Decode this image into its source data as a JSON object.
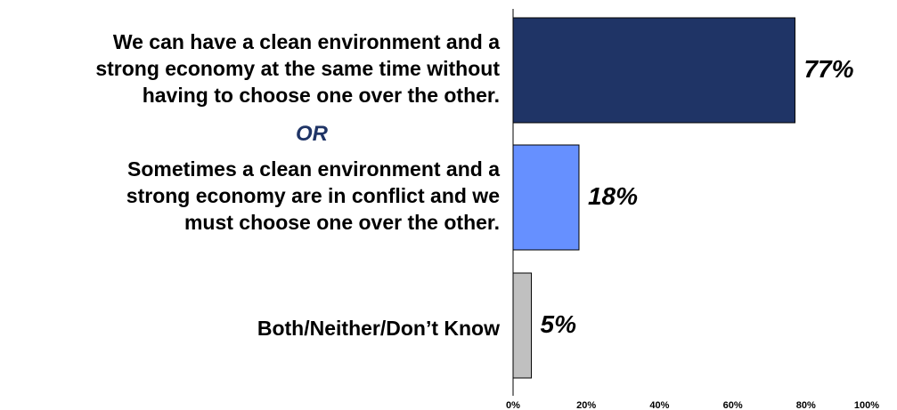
{
  "chart_data": {
    "type": "bar",
    "orientation": "horizontal",
    "categories": [
      "We can have a clean environment and a\nstrong economy at the same time without\nhaving to choose one over the other.",
      "Sometimes a clean environment and a\nstrong economy are in conflict and we\nmust choose one over the other.",
      "Both/Neither/Don’t Know"
    ],
    "values": [
      77,
      18,
      5
    ],
    "value_labels": [
      "77%",
      "18%",
      "5%"
    ],
    "separator_label": "OR",
    "xlim": [
      0,
      100
    ],
    "xticks": [
      "0%",
      "20%",
      "40%",
      "60%",
      "80%",
      "100%"
    ],
    "grid": false,
    "colors": [
      "#1F3466",
      "#6690FF",
      "#C0C0C0"
    ]
  }
}
